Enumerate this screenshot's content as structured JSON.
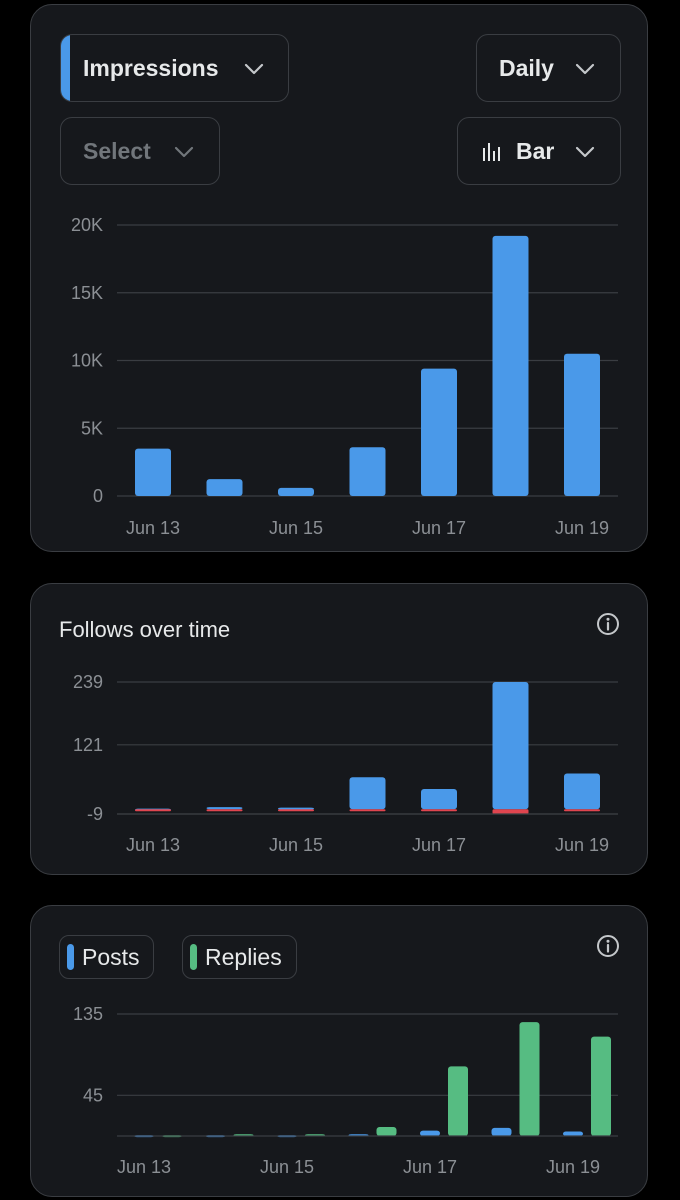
{
  "controls": {
    "metric": "Impressions",
    "interval": "Daily",
    "compare_placeholder": "Select",
    "chart_style": "Bar"
  },
  "follows": {
    "title": "Follows over time"
  },
  "posts_legend": {
    "posts": "Posts",
    "replies": "Replies"
  },
  "colors": {
    "blue": "#4a99e9",
    "green": "#56bc82",
    "red": "#e0454f",
    "grid": "#3a3d42",
    "tick": "#8b8f94"
  },
  "chart_data": [
    {
      "type": "bar",
      "title": "",
      "categories": [
        "Jun 13",
        "Jun 14",
        "Jun 15",
        "Jun 16",
        "Jun 17",
        "Jun 18",
        "Jun 19"
      ],
      "x_tick_labels": [
        "Jun 13",
        "Jun 15",
        "Jun 17",
        "Jun 19"
      ],
      "series": [
        {
          "name": "Impressions",
          "values": [
            3500,
            1250,
            600,
            3600,
            9400,
            19200,
            10500
          ]
        }
      ],
      "y_ticks": [
        0,
        5000,
        10000,
        15000,
        20000
      ],
      "y_tick_labels": [
        "0",
        "5K",
        "10K",
        "15K",
        "20K"
      ],
      "ylim": [
        0,
        20000
      ],
      "grid": true
    },
    {
      "type": "bar",
      "title": "Follows over time",
      "categories": [
        "Jun 13",
        "Jun 14",
        "Jun 15",
        "Jun 16",
        "Jun 17",
        "Jun 18",
        "Jun 19"
      ],
      "x_tick_labels": [
        "Jun 13",
        "Jun 15",
        "Jun 17",
        "Jun 19"
      ],
      "series": [
        {
          "values": [
            1,
            4,
            3,
            60,
            38,
            239,
            67
          ]
        },
        {
          "values": [
            -1,
            0,
            0,
            -1,
            -3,
            -9,
            -3
          ]
        }
      ],
      "y_ticks": [
        -9,
        121,
        239
      ],
      "ylim": [
        -9,
        239
      ],
      "grid": true
    },
    {
      "type": "bar",
      "categories": [
        "Jun 13",
        "Jun 14",
        "Jun 15",
        "Jun 16",
        "Jun 17",
        "Jun 18",
        "Jun 19"
      ],
      "x_tick_labels": [
        "Jun 13",
        "Jun 15",
        "Jun 17",
        "Jun 19"
      ],
      "series": [
        {
          "name": "Posts",
          "values": [
            1,
            1,
            1,
            2,
            6,
            9,
            5
          ]
        },
        {
          "name": "Replies",
          "values": [
            1,
            2,
            2,
            10,
            77,
            126,
            110
          ]
        }
      ],
      "y_ticks": [
        45,
        135
      ],
      "ylim": [
        0,
        135
      ],
      "grid": true
    }
  ]
}
